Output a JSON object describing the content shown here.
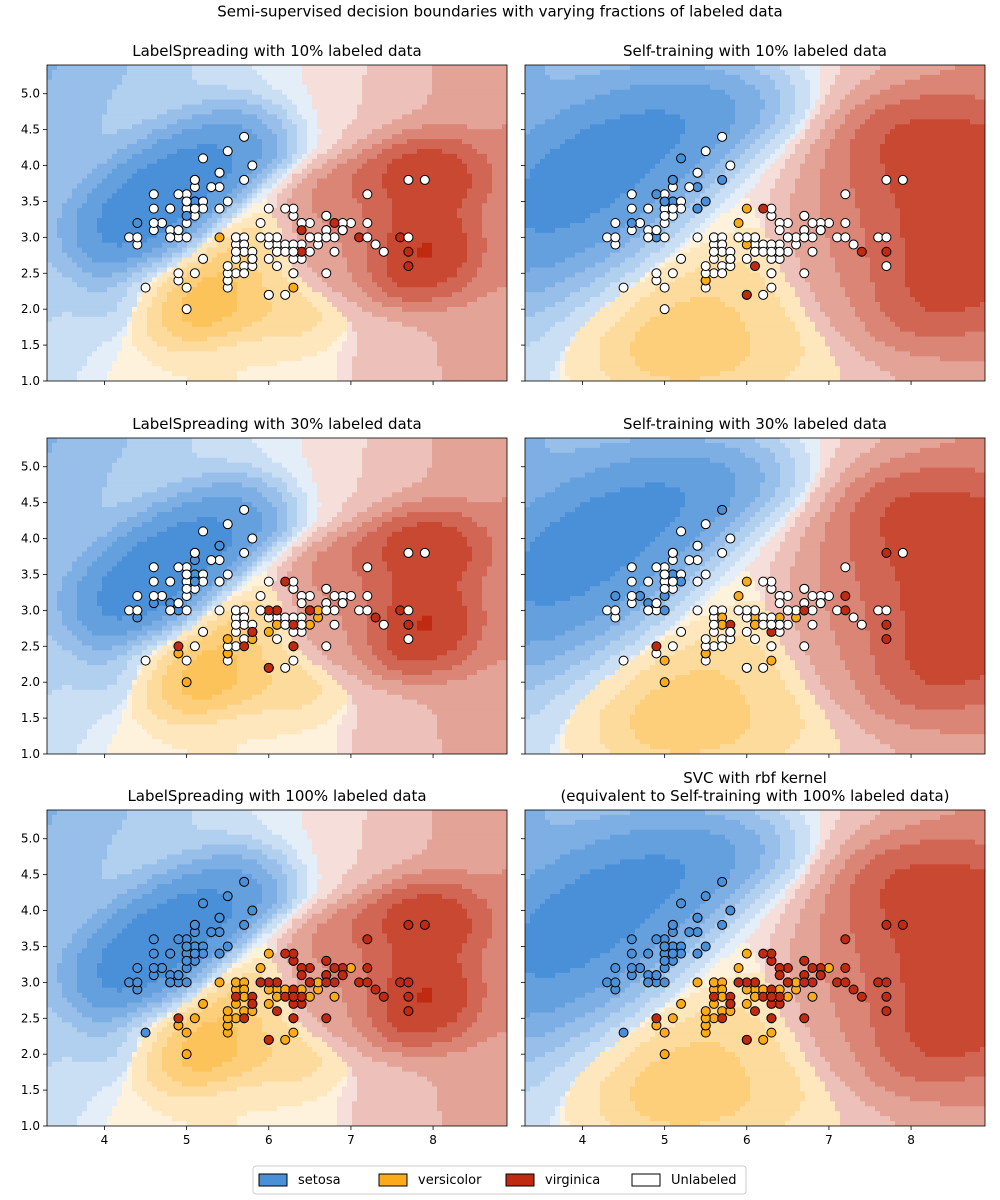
{
  "figure": {
    "suptitle": "Semi-supervised decision boundaries with varying fractions of labeled data"
  },
  "colors": {
    "setosa": "#4a90d9",
    "versicolor": "#fbab1a",
    "virginica": "#c02a10",
    "unlabeled": "#ffffff"
  },
  "legend": {
    "items": [
      {
        "label": "setosa",
        "color": "#4a90d9"
      },
      {
        "label": "versicolor",
        "color": "#fbab1a"
      },
      {
        "label": "virginica",
        "color": "#c02a10"
      },
      {
        "label": "Unlabeled",
        "color": "#ffffff"
      }
    ],
    "placement": "bottom-center"
  },
  "axes_common": {
    "xlim": [
      3.3,
      8.9
    ],
    "ylim": [
      1.0,
      5.4
    ],
    "xticks": [
      4,
      5,
      6,
      7,
      8
    ],
    "yticks": [
      1.0,
      1.5,
      2.0,
      2.5,
      3.0,
      3.5,
      4.0,
      4.5,
      5.0
    ],
    "xtick_labels": [
      "4",
      "5",
      "6",
      "7",
      "8"
    ],
    "ytick_labels": [
      "1.0",
      "1.5",
      "2.0",
      "2.5",
      "3.0",
      "3.5",
      "4.0",
      "4.5",
      "5.0"
    ]
  },
  "chart_data": [
    {
      "type": "scatter",
      "title": "LabelSpreading with 10% labeled data",
      "labeled_fraction": 0.1,
      "method": "label_spreading",
      "background_classes": [
        "setosa",
        "versicolor",
        "virginica"
      ]
    },
    {
      "type": "scatter",
      "title": "Self-training with 10% labeled data",
      "labeled_fraction": 0.1,
      "method": "self_training",
      "background_classes": [
        "setosa",
        "versicolor",
        "virginica"
      ]
    },
    {
      "type": "scatter",
      "title": "LabelSpreading with 30% labeled data",
      "labeled_fraction": 0.3,
      "method": "label_spreading",
      "background_classes": [
        "setosa",
        "versicolor",
        "virginica"
      ]
    },
    {
      "type": "scatter",
      "title": "Self-training with 30% labeled data",
      "labeled_fraction": 0.3,
      "method": "self_training",
      "background_classes": [
        "setosa",
        "versicolor",
        "virginica"
      ]
    },
    {
      "type": "scatter",
      "title": "LabelSpreading with 100% labeled data",
      "labeled_fraction": 1.0,
      "method": "label_spreading",
      "background_classes": [
        "setosa",
        "versicolor",
        "virginica"
      ]
    },
    {
      "type": "scatter",
      "title": "SVC with rbf kernel\n(equivalent to Self-training with 100% labeled data)",
      "labeled_fraction": 1.0,
      "method": "svc",
      "background_classes": [
        "setosa",
        "versicolor",
        "virginica"
      ]
    }
  ],
  "points": [
    [
      5.1,
      3.5,
      0
    ],
    [
      4.9,
      3.0,
      0
    ],
    [
      4.7,
      3.2,
      0
    ],
    [
      4.6,
      3.1,
      0
    ],
    [
      5.0,
      3.6,
      0
    ],
    [
      5.4,
      3.9,
      0
    ],
    [
      4.6,
      3.4,
      0
    ],
    [
      5.0,
      3.4,
      0
    ],
    [
      4.4,
      2.9,
      0
    ],
    [
      4.9,
      3.1,
      0
    ],
    [
      5.4,
      3.7,
      0
    ],
    [
      4.8,
      3.4,
      0
    ],
    [
      4.8,
      3.0,
      0
    ],
    [
      4.3,
      3.0,
      0
    ],
    [
      5.8,
      4.0,
      0
    ],
    [
      5.7,
      4.4,
      0
    ],
    [
      5.4,
      3.9,
      0
    ],
    [
      5.1,
      3.5,
      0
    ],
    [
      5.7,
      3.8,
      0
    ],
    [
      5.1,
      3.8,
      0
    ],
    [
      5.4,
      3.4,
      0
    ],
    [
      5.1,
      3.7,
      0
    ],
    [
      4.6,
      3.6,
      0
    ],
    [
      5.1,
      3.3,
      0
    ],
    [
      4.8,
      3.4,
      0
    ],
    [
      5.0,
      3.0,
      0
    ],
    [
      5.0,
      3.4,
      0
    ],
    [
      5.2,
      3.5,
      0
    ],
    [
      5.2,
      3.4,
      0
    ],
    [
      4.7,
      3.2,
      0
    ],
    [
      4.8,
      3.1,
      0
    ],
    [
      5.4,
      3.4,
      0
    ],
    [
      5.2,
      4.1,
      0
    ],
    [
      5.5,
      4.2,
      0
    ],
    [
      4.9,
      3.1,
      0
    ],
    [
      5.0,
      3.2,
      0
    ],
    [
      5.5,
      3.5,
      0
    ],
    [
      4.9,
      3.6,
      0
    ],
    [
      4.4,
      3.0,
      0
    ],
    [
      5.1,
      3.4,
      0
    ],
    [
      5.0,
      3.5,
      0
    ],
    [
      4.5,
      2.3,
      0
    ],
    [
      4.4,
      3.2,
      0
    ],
    [
      5.0,
      3.5,
      0
    ],
    [
      5.1,
      3.8,
      0
    ],
    [
      4.8,
      3.0,
      0
    ],
    [
      5.1,
      3.8,
      0
    ],
    [
      4.6,
      3.2,
      0
    ],
    [
      5.3,
      3.7,
      0
    ],
    [
      5.0,
      3.3,
      0
    ],
    [
      7.0,
      3.2,
      1
    ],
    [
      6.4,
      3.2,
      1
    ],
    [
      6.9,
      3.1,
      1
    ],
    [
      5.5,
      2.3,
      1
    ],
    [
      6.5,
      2.8,
      1
    ],
    [
      5.7,
      2.8,
      1
    ],
    [
      6.3,
      3.3,
      1
    ],
    [
      4.9,
      2.4,
      1
    ],
    [
      6.6,
      2.9,
      1
    ],
    [
      5.2,
      2.7,
      1
    ],
    [
      5.0,
      2.0,
      1
    ],
    [
      5.9,
      3.0,
      1
    ],
    [
      6.0,
      2.2,
      1
    ],
    [
      6.1,
      2.9,
      1
    ],
    [
      5.6,
      2.9,
      1
    ],
    [
      6.7,
      3.1,
      1
    ],
    [
      5.6,
      3.0,
      1
    ],
    [
      5.8,
      2.7,
      1
    ],
    [
      6.2,
      2.2,
      1
    ],
    [
      5.6,
      2.5,
      1
    ],
    [
      5.9,
      3.2,
      1
    ],
    [
      6.1,
      2.8,
      1
    ],
    [
      6.3,
      2.5,
      1
    ],
    [
      6.1,
      2.8,
      1
    ],
    [
      6.4,
      2.9,
      1
    ],
    [
      6.6,
      3.0,
      1
    ],
    [
      6.8,
      2.8,
      1
    ],
    [
      6.7,
      3.0,
      1
    ],
    [
      6.0,
      2.9,
      1
    ],
    [
      5.7,
      2.6,
      1
    ],
    [
      5.5,
      2.4,
      1
    ],
    [
      5.5,
      2.4,
      1
    ],
    [
      5.8,
      2.7,
      1
    ],
    [
      6.0,
      2.7,
      1
    ],
    [
      5.4,
      3.0,
      1
    ],
    [
      6.0,
      3.4,
      1
    ],
    [
      6.7,
      3.1,
      1
    ],
    [
      6.3,
      2.3,
      1
    ],
    [
      5.6,
      3.0,
      1
    ],
    [
      5.5,
      2.5,
      1
    ],
    [
      5.5,
      2.6,
      1
    ],
    [
      6.1,
      3.0,
      1
    ],
    [
      5.8,
      2.6,
      1
    ],
    [
      5.0,
      2.3,
      1
    ],
    [
      5.6,
      2.7,
      1
    ],
    [
      5.7,
      3.0,
      1
    ],
    [
      5.7,
      2.9,
      1
    ],
    [
      6.2,
      2.9,
      1
    ],
    [
      5.1,
      2.5,
      1
    ],
    [
      5.7,
      2.8,
      1
    ],
    [
      6.3,
      3.3,
      2
    ],
    [
      5.8,
      2.7,
      2
    ],
    [
      7.1,
      3.0,
      2
    ],
    [
      6.3,
      2.9,
      2
    ],
    [
      6.5,
      3.0,
      2
    ],
    [
      7.6,
      3.0,
      2
    ],
    [
      4.9,
      2.5,
      2
    ],
    [
      7.3,
      2.9,
      2
    ],
    [
      6.7,
      2.5,
      2
    ],
    [
      7.2,
      3.6,
      2
    ],
    [
      6.5,
      3.2,
      2
    ],
    [
      6.4,
      2.7,
      2
    ],
    [
      6.8,
      3.0,
      2
    ],
    [
      5.7,
      2.5,
      2
    ],
    [
      5.8,
      2.8,
      2
    ],
    [
      6.4,
      3.2,
      2
    ],
    [
      6.5,
      3.0,
      2
    ],
    [
      7.7,
      3.8,
      2
    ],
    [
      7.7,
      2.6,
      2
    ],
    [
      6.0,
      2.2,
      2
    ],
    [
      6.9,
      3.2,
      2
    ],
    [
      5.6,
      2.8,
      2
    ],
    [
      7.7,
      2.8,
      2
    ],
    [
      6.3,
      2.7,
      2
    ],
    [
      6.7,
      3.3,
      2
    ],
    [
      7.2,
      3.2,
      2
    ],
    [
      6.2,
      2.8,
      2
    ],
    [
      6.1,
      3.0,
      2
    ],
    [
      6.4,
      2.8,
      2
    ],
    [
      7.2,
      3.0,
      2
    ],
    [
      7.4,
      2.8,
      2
    ],
    [
      7.9,
      3.8,
      2
    ],
    [
      6.4,
      2.8,
      2
    ],
    [
      6.3,
      2.8,
      2
    ],
    [
      6.1,
      2.6,
      2
    ],
    [
      7.7,
      3.0,
      2
    ],
    [
      6.3,
      3.4,
      2
    ],
    [
      6.4,
      3.1,
      2
    ],
    [
      6.0,
      3.0,
      2
    ],
    [
      6.9,
      3.1,
      2
    ],
    [
      6.7,
      3.1,
      2
    ],
    [
      6.9,
      3.1,
      2
    ],
    [
      5.8,
      2.7,
      2
    ],
    [
      6.8,
      3.2,
      2
    ],
    [
      6.7,
      3.3,
      2
    ],
    [
      6.7,
      3.0,
      2
    ],
    [
      6.3,
      2.5,
      2
    ],
    [
      6.5,
      3.0,
      2
    ],
    [
      6.2,
      3.4,
      2
    ],
    [
      5.9,
      3.0,
      2
    ]
  ]
}
